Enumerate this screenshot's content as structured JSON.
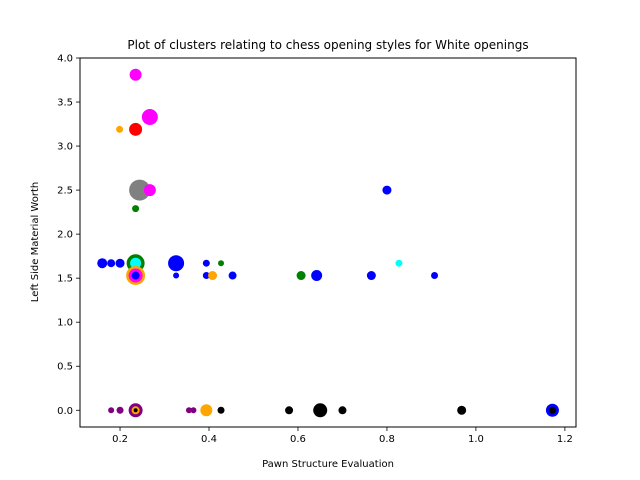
{
  "chart_data": {
    "type": "scatter",
    "title": "Plot of clusters relating to chess opening styles for White openings",
    "xlabel": "Pawn Structure Evaluation",
    "ylabel": "Left Side Material Worth",
    "xlim": [
      0.11,
      1.225
    ],
    "ylim": [
      -0.19,
      4.0
    ],
    "xticks": [
      "0.2",
      "0.4",
      "0.6",
      "0.8",
      "1.0",
      "1.2"
    ],
    "yticks": [
      "0.0",
      "0.5",
      "1.0",
      "1.5",
      "2.0",
      "2.5",
      "3.0",
      "3.5",
      "4.0"
    ],
    "grid": false,
    "legend": "none",
    "points": [
      {
        "x": 0.235,
        "y": 3.81,
        "color": "#ff00ff",
        "size": 6
      },
      {
        "x": 0.267,
        "y": 3.33,
        "color": "#ff00ff",
        "size": 8
      },
      {
        "x": 0.199,
        "y": 3.19,
        "color": "#ffa500",
        "size": 3.5
      },
      {
        "x": 0.235,
        "y": 3.19,
        "color": "#ff0000",
        "size": 6.5
      },
      {
        "x": 0.244,
        "y": 2.5,
        "color": "#808080",
        "size": 10.5
      },
      {
        "x": 0.235,
        "y": 2.5,
        "color": "#808080",
        "size": 4
      },
      {
        "x": 0.267,
        "y": 2.5,
        "color": "#ff00ff",
        "size": 6
      },
      {
        "x": 0.235,
        "y": 2.29,
        "color": "#008000",
        "size": 3.5
      },
      {
        "x": 0.8,
        "y": 2.5,
        "color": "#0000ff",
        "size": 4.5
      },
      {
        "x": 0.16,
        "y": 1.67,
        "color": "#0000ff",
        "size": 5
      },
      {
        "x": 0.18,
        "y": 1.67,
        "color": "#0000ff",
        "size": 4
      },
      {
        "x": 0.2,
        "y": 1.67,
        "color": "#0000ff",
        "size": 4.5
      },
      {
        "x": 0.235,
        "y": 1.67,
        "color": "#008000",
        "size": 9
      },
      {
        "x": 0.235,
        "y": 1.67,
        "color": "#00ffff",
        "size": 5.5
      },
      {
        "x": 0.235,
        "y": 1.53,
        "color": "#ffa500",
        "size": 9.5
      },
      {
        "x": 0.235,
        "y": 1.53,
        "color": "#ff00ff",
        "size": 7
      },
      {
        "x": 0.235,
        "y": 1.53,
        "color": "#0000ff",
        "size": 4
      },
      {
        "x": 0.326,
        "y": 1.67,
        "color": "#0000ff",
        "size": 8
      },
      {
        "x": 0.326,
        "y": 1.53,
        "color": "#0000ff",
        "size": 3
      },
      {
        "x": 0.394,
        "y": 1.67,
        "color": "#0000ff",
        "size": 3.5
      },
      {
        "x": 0.394,
        "y": 1.53,
        "color": "#0000ff",
        "size": 3.5
      },
      {
        "x": 0.408,
        "y": 1.53,
        "color": "#ffa500",
        "size": 4.5
      },
      {
        "x": 0.427,
        "y": 1.67,
        "color": "#008000",
        "size": 3
      },
      {
        "x": 0.453,
        "y": 1.53,
        "color": "#0000ff",
        "size": 4
      },
      {
        "x": 0.607,
        "y": 1.53,
        "color": "#008000",
        "size": 4.5
      },
      {
        "x": 0.642,
        "y": 1.53,
        "color": "#0000ff",
        "size": 5.5
      },
      {
        "x": 0.765,
        "y": 1.53,
        "color": "#0000ff",
        "size": 4.5
      },
      {
        "x": 0.827,
        "y": 1.67,
        "color": "#00ffff",
        "size": 3.5
      },
      {
        "x": 0.907,
        "y": 1.53,
        "color": "#0000ff",
        "size": 3.5
      },
      {
        "x": 0.18,
        "y": 0.0,
        "color": "#800080",
        "size": 3
      },
      {
        "x": 0.2,
        "y": 0.0,
        "color": "#800080",
        "size": 3.5
      },
      {
        "x": 0.235,
        "y": 0.0,
        "color": "#800080",
        "size": 7
      },
      {
        "x": 0.235,
        "y": 0.0,
        "color": "#ffa500",
        "size": 4
      },
      {
        "x": 0.235,
        "y": 0.0,
        "color": "#000000",
        "size": 2
      },
      {
        "x": 0.355,
        "y": 0.0,
        "color": "#800080",
        "size": 3
      },
      {
        "x": 0.365,
        "y": 0.0,
        "color": "#800080",
        "size": 3
      },
      {
        "x": 0.394,
        "y": 0.0,
        "color": "#ffa500",
        "size": 6
      },
      {
        "x": 0.427,
        "y": 0.0,
        "color": "#000000",
        "size": 3.5
      },
      {
        "x": 0.58,
        "y": 0.0,
        "color": "#000000",
        "size": 4
      },
      {
        "x": 0.642,
        "y": 0.0,
        "color": "#00ffff",
        "size": 3.5
      },
      {
        "x": 0.65,
        "y": 0.0,
        "color": "#000000",
        "size": 7
      },
      {
        "x": 0.7,
        "y": 0.0,
        "color": "#000000",
        "size": 4
      },
      {
        "x": 0.968,
        "y": 0.0,
        "color": "#000000",
        "size": 4.5
      },
      {
        "x": 1.172,
        "y": 0.0,
        "color": "#0000ff",
        "size": 6.5
      },
      {
        "x": 1.172,
        "y": 0.0,
        "color": "#000000",
        "size": 3.5
      }
    ]
  }
}
